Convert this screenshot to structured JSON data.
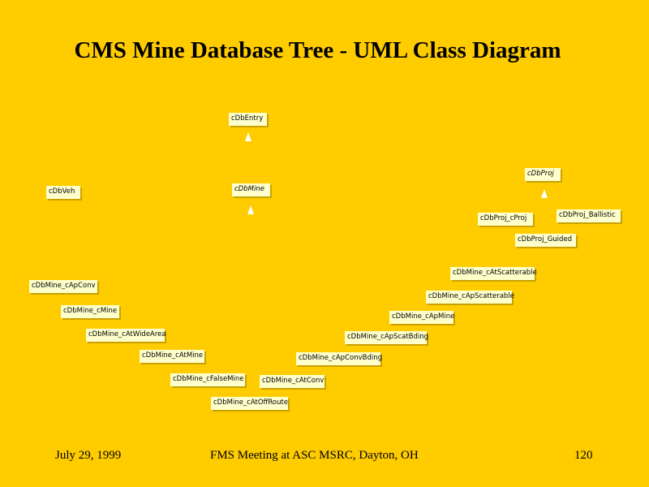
{
  "title": "CMS Mine Database Tree - UML Class Diagram",
  "classes": {
    "db_entry": "cDbEntry",
    "db_mine": "cDbMine",
    "db_veh": "cDbVeh",
    "db_proj": "cDbProj",
    "db_proj_c_proj": "cDbProj_cProj",
    "db_proj_ballistic": "cDbProj_Ballistic",
    "db_proj_guided": "cDbProj_Guided",
    "mine_at_scatterable": "cDbMine_cAtScatterable",
    "mine_ap_conv": "cDbMine_cApConv",
    "mine_ap_scatterable": "cDbMine_cApScatterable",
    "mine_c_mine": "cDbMine_cMine",
    "mine_ap_mine": "cDbMine_cApMine",
    "mine_at_wide_area": "cDbMine_cAtWideArea",
    "mine_ap_scat_bding": "cDbMine_cApScatBding",
    "mine_at_mine": "cDbMine_cAtMine",
    "mine_ap_conv_bding": "cDbMine_cApConvBding",
    "mine_false_mine": "cDbMine_cFalseMine",
    "mine_at_conv": "cDbMine_cAtConv",
    "mine_at_off_route": "cDbMine_cAtOffRoute"
  },
  "footer": {
    "date": "July 29,  1999",
    "meeting": "FMS Meeting at ASC MSRC, Dayton, OH",
    "page": "120"
  }
}
